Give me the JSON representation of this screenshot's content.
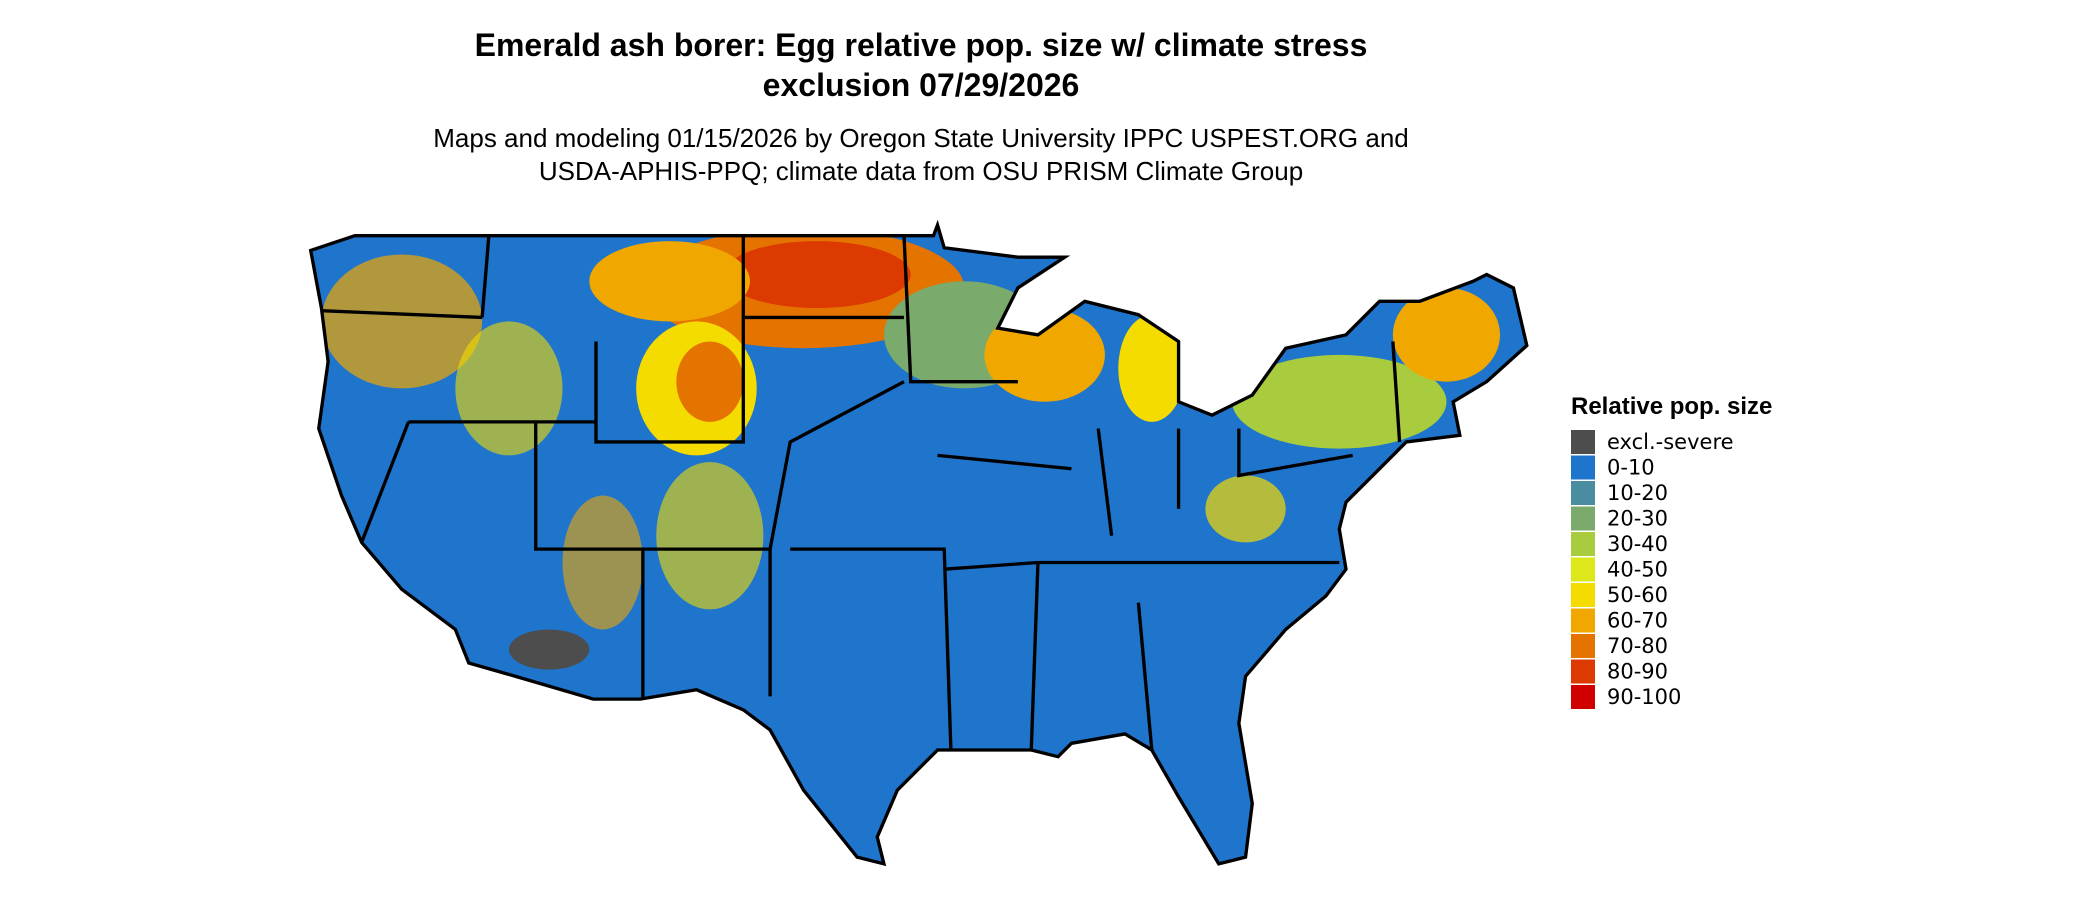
{
  "title_lines": [
    "Emerald ash borer: Egg relative pop. size w/ climate stress",
    "exclusion 07/29/2026"
  ],
  "subtitle_lines": [
    "Maps and modeling 01/15/2026 by Oregon State University IPPC USPEST.ORG and",
    "USDA-APHIS-PPQ; climate data from OSU PRISM Climate Group"
  ],
  "legend": {
    "title": "Relative pop. size",
    "items": [
      {
        "label": "excl.-severe",
        "color": "#4d4d4d"
      },
      {
        "label": "0-10",
        "color": "#1f74cc"
      },
      {
        "label": "10-20",
        "color": "#4a8ca0"
      },
      {
        "label": "20-30",
        "color": "#7aab6c"
      },
      {
        "label": "30-40",
        "color": "#a9cc3e"
      },
      {
        "label": "40-50",
        "color": "#dde81a"
      },
      {
        "label": "50-60",
        "color": "#f5dc00"
      },
      {
        "label": "60-70",
        "color": "#f0a800"
      },
      {
        "label": "70-80",
        "color": "#e57300"
      },
      {
        "label": "80-90",
        "color": "#dc3a00"
      },
      {
        "label": "90-100",
        "color": "#d10000"
      }
    ]
  }
}
